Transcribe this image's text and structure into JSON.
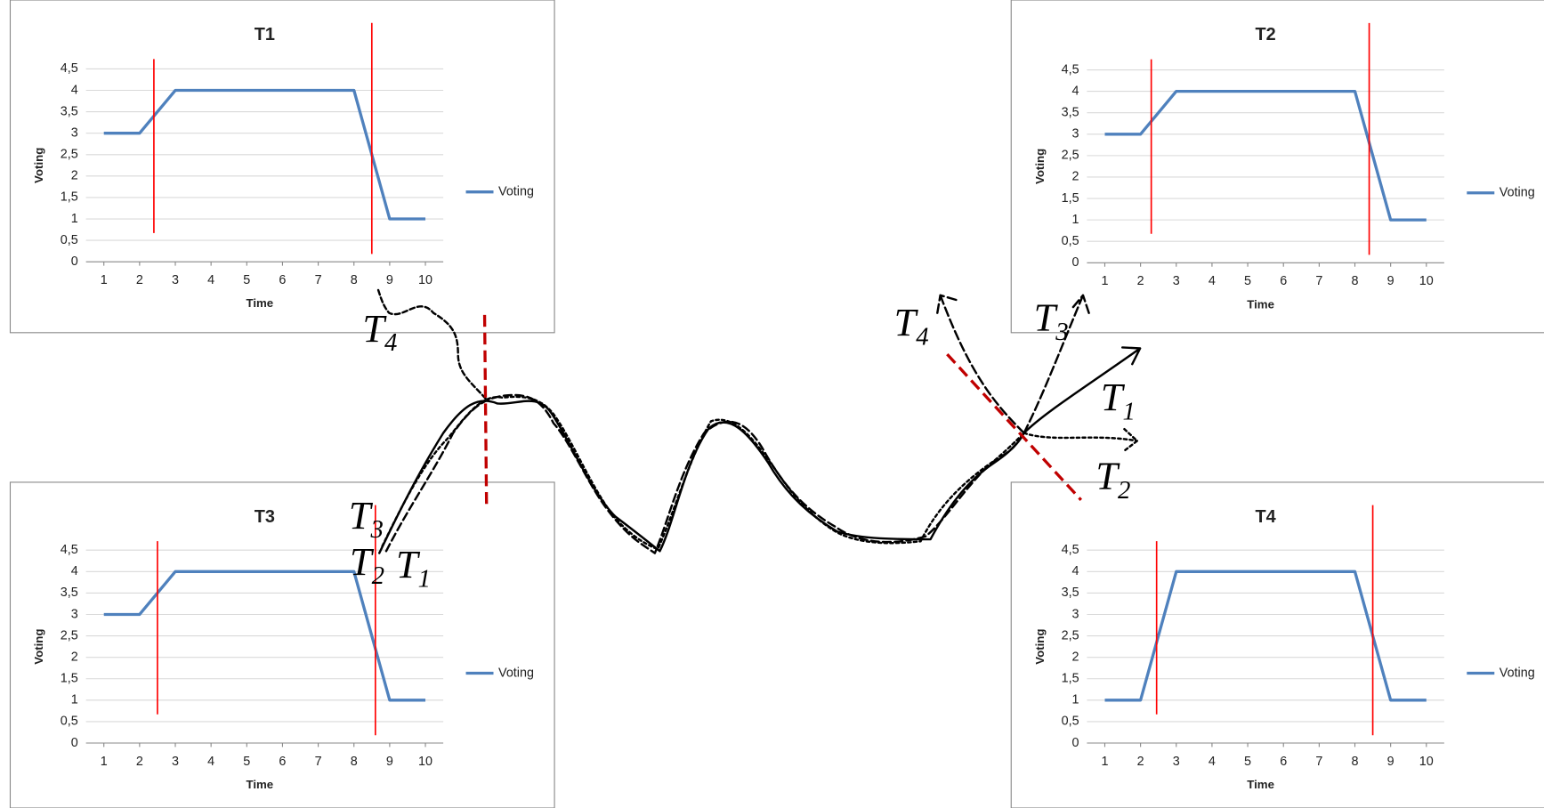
{
  "chart_data": [
    {
      "type": "line",
      "title": "T1",
      "x_label": "Time",
      "y_label": "Voting",
      "x": [
        1,
        2,
        3,
        4,
        5,
        6,
        7,
        8,
        9,
        10
      ],
      "xlim": [
        0.5,
        10.5
      ],
      "xticks": [
        1,
        2,
        3,
        4,
        5,
        6,
        7,
        8,
        9,
        10
      ],
      "ylim": [
        0,
        4.5
      ],
      "yticks": [
        0,
        {
          "value": 0.5,
          "label": "0,5"
        },
        1,
        {
          "value": 1.5,
          "label": "1,5"
        },
        2,
        {
          "value": 2.5,
          "label": "2,5"
        },
        3,
        {
          "value": 3.5,
          "label": "3,5"
        },
        4,
        {
          "value": 4.5,
          "label": "4,5"
        }
      ],
      "grid": true,
      "legend": "right",
      "series": [
        {
          "name": "Voting",
          "color": "#4f81bd",
          "values": [
            3,
            3,
            4,
            4,
            4,
            4,
            4,
            4,
            1,
            1
          ]
        }
      ],
      "vlines": [
        2.4,
        8.5
      ],
      "vline_color": "#ff0000"
    },
    {
      "type": "line",
      "title": "T2",
      "x_label": "Time",
      "y_label": "Voting",
      "x": [
        1,
        2,
        3,
        4,
        5,
        6,
        7,
        8,
        9,
        10
      ],
      "xlim": [
        0.5,
        10.5
      ],
      "xticks": [
        1,
        2,
        3,
        4,
        5,
        6,
        7,
        8,
        9,
        10
      ],
      "ylim": [
        0,
        4.5
      ],
      "yticks": [
        0,
        {
          "value": 0.5,
          "label": "0,5"
        },
        1,
        {
          "value": 1.5,
          "label": "1,5"
        },
        2,
        {
          "value": 2.5,
          "label": "2,5"
        },
        3,
        {
          "value": 3.5,
          "label": "3,5"
        },
        4,
        {
          "value": 4.5,
          "label": "4,5"
        }
      ],
      "grid": true,
      "legend": "right",
      "series": [
        {
          "name": "Voting",
          "color": "#4f81bd",
          "values": [
            3,
            3,
            4,
            4,
            4,
            4,
            4,
            4,
            1,
            1
          ]
        }
      ],
      "vlines": [
        2.3,
        8.4
      ],
      "vline_color": "#ff0000"
    },
    {
      "type": "line",
      "title": "T3",
      "x_label": "Time",
      "y_label": "Voting",
      "x": [
        1,
        2,
        3,
        4,
        5,
        6,
        7,
        8,
        9,
        10
      ],
      "xlim": [
        0.5,
        10.5
      ],
      "xticks": [
        1,
        2,
        3,
        4,
        5,
        6,
        7,
        8,
        9,
        10
      ],
      "ylim": [
        0,
        4.5
      ],
      "yticks": [
        0,
        {
          "value": 0.5,
          "label": "0,5"
        },
        1,
        {
          "value": 1.5,
          "label": "1,5"
        },
        2,
        {
          "value": 2.5,
          "label": "2,5"
        },
        3,
        {
          "value": 3.5,
          "label": "3,5"
        },
        4,
        {
          "value": 4.5,
          "label": "4,5"
        }
      ],
      "grid": true,
      "legend": "right",
      "series": [
        {
          "name": "Voting",
          "color": "#4f81bd",
          "values": [
            3,
            3,
            4,
            4,
            4,
            4,
            4,
            4,
            1,
            1
          ]
        }
      ],
      "vlines": [
        2.5,
        8.6
      ],
      "vline_color": "#ff0000"
    },
    {
      "type": "line",
      "title": "T4",
      "x_label": "Time",
      "y_label": "Voting",
      "x": [
        1,
        2,
        3,
        4,
        5,
        6,
        7,
        8,
        9,
        10
      ],
      "xlim": [
        0.5,
        10.5
      ],
      "xticks": [
        1,
        2,
        3,
        4,
        5,
        6,
        7,
        8,
        9,
        10
      ],
      "ylim": [
        0,
        4.5
      ],
      "yticks": [
        0,
        {
          "value": 0.5,
          "label": "0,5"
        },
        1,
        {
          "value": 1.5,
          "label": "1,5"
        },
        2,
        {
          "value": 2.5,
          "label": "2,5"
        },
        3,
        {
          "value": 3.5,
          "label": "3,5"
        },
        4,
        {
          "value": 4.5,
          "label": "4,5"
        }
      ],
      "grid": true,
      "legend": "right",
      "series": [
        {
          "name": "Voting",
          "color": "#4f81bd",
          "values": [
            1,
            1,
            4,
            4,
            4,
            4,
            4,
            4,
            1,
            1
          ]
        }
      ],
      "vlines": [
        2.45,
        8.5
      ],
      "vline_color": "#ff0000"
    }
  ],
  "diagram": {
    "labels": [
      {
        "base": "T",
        "sub": "4"
      },
      {
        "base": "T",
        "sub": "3"
      },
      {
        "base": "T",
        "sub": "2"
      },
      {
        "base": "T",
        "sub": "1"
      },
      {
        "base": "T",
        "sub": "4"
      },
      {
        "base": "T",
        "sub": "3"
      },
      {
        "base": "T",
        "sub": "1"
      },
      {
        "base": "T",
        "sub": "2"
      }
    ]
  }
}
